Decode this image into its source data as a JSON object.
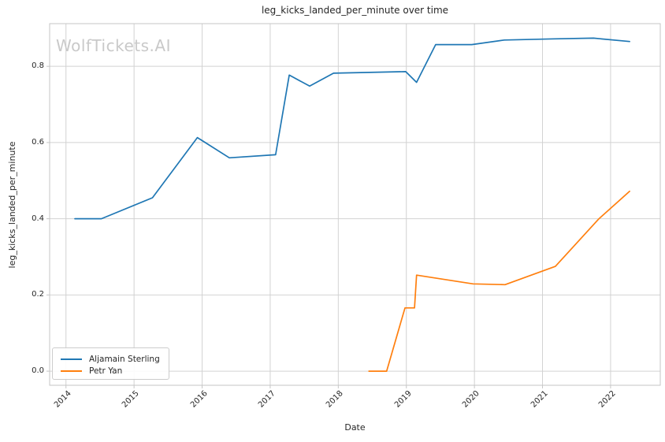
{
  "watermark": "WolfTickets.AI",
  "colors": {
    "background": "#ffffff",
    "grid": "#d2d2d2",
    "spine": "#c6c6c6",
    "text": "#262626",
    "watermark": "#c9c9c9",
    "sterling_blue": "#1f77b4",
    "yan_orange": "#ff7f0e"
  },
  "legend": {
    "entries": [
      {
        "label": "Aljamain Sterling",
        "color": "#1f77b4"
      },
      {
        "label": "Petr Yan",
        "color": "#ff7f0e"
      }
    ]
  },
  "chart_data": {
    "type": "line",
    "title": "leg_kicks_landed_per_minute over time",
    "xlabel": "Date",
    "ylabel": "leg_kicks_landed_per_minute",
    "x_ticks": [
      2014,
      2015,
      2016,
      2017,
      2018,
      2019,
      2020,
      2021,
      2022
    ],
    "y_ticks": [
      0.0,
      0.2,
      0.4,
      0.6,
      0.8
    ],
    "xlim": [
      2013.76,
      2022.73
    ],
    "ylim": [
      -0.037,
      0.912
    ],
    "grid": true,
    "legend_position": "lower left",
    "series": [
      {
        "name": "Aljamain Sterling",
        "color": "#1f77b4",
        "points": [
          [
            2014.13,
            0.4
          ],
          [
            2014.52,
            0.4
          ],
          [
            2015.27,
            0.455
          ],
          [
            2015.93,
            0.613
          ],
          [
            2016.4,
            0.56
          ],
          [
            2017.08,
            0.568
          ],
          [
            2017.28,
            0.777
          ],
          [
            2017.58,
            0.748
          ],
          [
            2017.93,
            0.782
          ],
          [
            2018.99,
            0.786
          ],
          [
            2019.15,
            0.758
          ],
          [
            2019.43,
            0.857
          ],
          [
            2019.96,
            0.857
          ],
          [
            2020.44,
            0.869
          ],
          [
            2021.18,
            0.872
          ],
          [
            2021.75,
            0.874
          ],
          [
            2022.28,
            0.865
          ]
        ]
      },
      {
        "name": "Petr Yan",
        "color": "#ff7f0e",
        "points": [
          [
            2018.45,
            0.0
          ],
          [
            2018.71,
            0.0
          ],
          [
            2018.98,
            0.166
          ],
          [
            2019.12,
            0.166
          ],
          [
            2019.15,
            0.252
          ],
          [
            2019.98,
            0.229
          ],
          [
            2020.45,
            0.227
          ],
          [
            2021.19,
            0.275
          ],
          [
            2021.83,
            0.4
          ],
          [
            2022.28,
            0.472
          ]
        ]
      }
    ]
  }
}
